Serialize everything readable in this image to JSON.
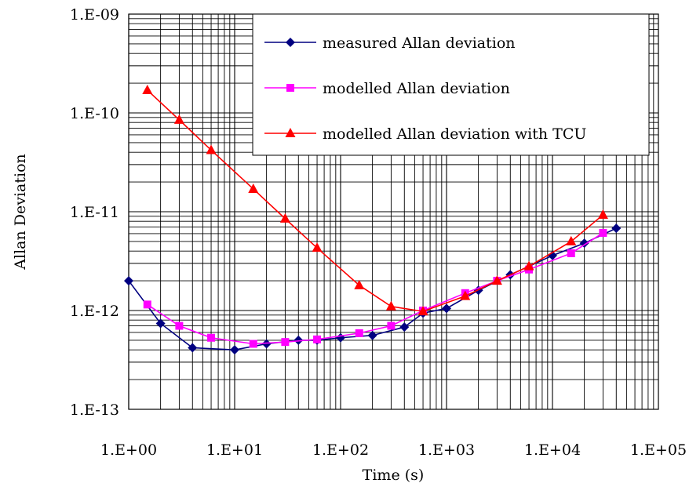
{
  "chart_data": {
    "type": "line",
    "title": "",
    "xlabel": "Time (s)",
    "ylabel": "Allan Deviation",
    "x_scale": "log",
    "y_scale": "log",
    "xlim": [
      1,
      100000
    ],
    "ylim": [
      1e-13,
      1e-09
    ],
    "grid": true,
    "legend_position": "top-right",
    "x_tick_labels": [
      "1.E+00",
      "1.E+01",
      "1.E+02",
      "1.E+03",
      "1.E+04",
      "1.E+05"
    ],
    "y_tick_labels": [
      "1.E-09",
      "1.E-10",
      "1.E-11",
      "1.E-12",
      "1.E-13"
    ],
    "series": [
      {
        "name": "measured Allan deviation",
        "color": "#000080",
        "marker": "diamond",
        "x": [
          1,
          2,
          4,
          10,
          20,
          40,
          60,
          100,
          200,
          400,
          600,
          1000,
          2000,
          4000,
          10000,
          20000,
          40000
        ],
        "y": [
          2e-12,
          7.4e-13,
          4.2e-13,
          4e-13,
          4.6e-13,
          5e-13,
          5e-13,
          5.3e-13,
          5.6e-13,
          6.8e-13,
          9.4e-13,
          1.05e-12,
          1.6e-12,
          2.3e-12,
          3.6e-12,
          4.8e-12,
          6.8e-12
        ]
      },
      {
        "name": "modelled Allan deviation",
        "color": "#ff00ff",
        "marker": "square",
        "x": [
          1.5,
          3,
          6,
          15,
          30,
          60,
          150,
          300,
          600,
          1500,
          3000,
          6000,
          15000,
          30000
        ],
        "y": [
          1.15e-12,
          7e-13,
          5.3e-13,
          4.6e-13,
          4.8e-13,
          5.1e-13,
          5.9e-13,
          7e-13,
          1e-12,
          1.5e-12,
          2e-12,
          2.6e-12,
          3.8e-12,
          6.1e-12
        ]
      },
      {
        "name": "modelled Allan deviation with TCU",
        "color": "#ff0000",
        "marker": "triangle",
        "x": [
          1.5,
          3,
          6,
          15,
          30,
          60,
          150,
          300,
          600,
          1500,
          3000,
          6000,
          15000,
          30000
        ],
        "y": [
          1.7e-10,
          8.5e-11,
          4.2e-11,
          1.7e-11,
          8.5e-12,
          4.3e-12,
          1.8e-12,
          1.1e-12,
          9.8e-13,
          1.4e-12,
          2e-12,
          2.8e-12,
          5e-12,
          9.3e-12
        ]
      }
    ]
  }
}
